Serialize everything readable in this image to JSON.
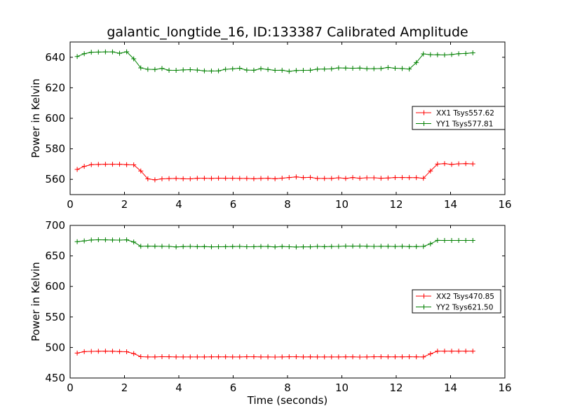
{
  "figure": {
    "title": "galantic_longtide_16, ID:133387 Calibrated Amplitude"
  },
  "colors": {
    "series_x": "#ff0000",
    "series_y": "#008000",
    "axes": "#000000",
    "background": "#ffffff"
  },
  "chart_data": [
    {
      "type": "line",
      "title": "galantic_longtide_16, ID:133387 Calibrated Amplitude",
      "xlabel": "",
      "ylabel": "Power in Kelvin",
      "xlim": [
        0,
        16
      ],
      "ylim": [
        550,
        650
      ],
      "xticks": [
        0,
        2,
        4,
        6,
        8,
        10,
        12,
        14,
        16
      ],
      "yticks": [
        560,
        580,
        600,
        620,
        640
      ],
      "xtick_labels": [
        "0",
        "2",
        "4",
        "6",
        "8",
        "10",
        "12",
        "14",
        "16"
      ],
      "ytick_labels": [
        "560",
        "580",
        "600",
        "620",
        "640"
      ],
      "grid": false,
      "legend_position": "right",
      "marker": "+",
      "x": [
        0.26,
        0.52,
        0.78,
        1.04,
        1.3,
        1.56,
        1.82,
        2.08,
        2.34,
        2.6,
        2.86,
        3.12,
        3.38,
        3.64,
        3.9,
        4.16,
        4.42,
        4.68,
        4.94,
        5.2,
        5.46,
        5.72,
        5.98,
        6.24,
        6.5,
        6.76,
        7.02,
        7.28,
        7.54,
        7.8,
        8.06,
        8.32,
        8.58,
        8.84,
        9.1,
        9.36,
        9.62,
        9.88,
        10.14,
        10.4,
        10.66,
        10.92,
        11.18,
        11.44,
        11.7,
        11.96,
        12.22,
        12.48,
        12.74,
        13.0,
        13.26,
        13.52,
        13.78,
        14.04,
        14.3,
        14.56,
        14.82
      ],
      "series": [
        {
          "name": "XX1 Tsys557.62",
          "values": [
            566.5,
            568.5,
            569.6,
            569.8,
            569.9,
            569.9,
            569.9,
            569.6,
            569.5,
            565.5,
            560.3,
            559.7,
            560.3,
            560.5,
            560.6,
            560.4,
            560.3,
            560.7,
            560.7,
            560.6,
            560.8,
            560.7,
            560.7,
            560.6,
            560.6,
            560.4,
            560.6,
            560.7,
            560.4,
            560.8,
            561.2,
            561.6,
            561.1,
            561.3,
            560.6,
            560.6,
            560.6,
            561.0,
            560.6,
            561.2,
            560.7,
            561.0,
            561.0,
            560.7,
            560.9,
            561.2,
            561.2,
            561.1,
            561.1,
            560.7,
            565.5,
            570.0,
            570.3,
            569.8,
            570.2,
            570.3,
            570.1
          ]
        },
        {
          "name": "YY1 Tsys577.81",
          "values": [
            640.5,
            642.3,
            643.3,
            643.4,
            643.5,
            643.5,
            642.6,
            643.6,
            639.0,
            633.0,
            632.1,
            632.0,
            632.7,
            631.5,
            631.4,
            631.7,
            631.9,
            631.6,
            631.1,
            631.0,
            631.1,
            632.1,
            632.4,
            632.8,
            631.6,
            631.5,
            632.5,
            632.0,
            631.4,
            631.5,
            630.8,
            631.3,
            631.4,
            631.5,
            632.2,
            632.3,
            632.4,
            633.0,
            632.9,
            632.8,
            632.9,
            632.5,
            632.5,
            632.6,
            633.3,
            632.8,
            632.6,
            632.3,
            636.5,
            642.2,
            641.7,
            641.6,
            641.5,
            641.8,
            642.3,
            642.5,
            642.9
          ]
        }
      ]
    },
    {
      "type": "line",
      "title": "",
      "xlabel": "Time (seconds)",
      "ylabel": "Power in Kelvin",
      "xlim": [
        0,
        16
      ],
      "ylim": [
        450,
        700
      ],
      "xticks": [
        0,
        2,
        4,
        6,
        8,
        10,
        12,
        14,
        16
      ],
      "yticks": [
        450,
        500,
        550,
        600,
        650,
        700
      ],
      "xtick_labels": [
        "0",
        "2",
        "4",
        "6",
        "8",
        "10",
        "12",
        "14",
        "16"
      ],
      "ytick_labels": [
        "450",
        "500",
        "550",
        "600",
        "650",
        "700"
      ],
      "grid": false,
      "legend_position": "right",
      "marker": "+",
      "x": [
        0.26,
        0.52,
        0.78,
        1.04,
        1.3,
        1.56,
        1.82,
        2.08,
        2.34,
        2.6,
        2.86,
        3.12,
        3.38,
        3.64,
        3.9,
        4.16,
        4.42,
        4.68,
        4.94,
        5.2,
        5.46,
        5.72,
        5.98,
        6.24,
        6.5,
        6.76,
        7.02,
        7.28,
        7.54,
        7.8,
        8.06,
        8.32,
        8.58,
        8.84,
        9.1,
        9.36,
        9.62,
        9.88,
        10.14,
        10.4,
        10.66,
        10.92,
        11.18,
        11.44,
        11.7,
        11.96,
        12.22,
        12.48,
        12.74,
        13.0,
        13.26,
        13.52,
        13.78,
        14.04,
        14.3,
        14.56,
        14.82
      ],
      "series": [
        {
          "name": "XX2 Tsys470.85",
          "values": [
            490.8,
            493.2,
            493.6,
            493.8,
            494.0,
            493.8,
            493.3,
            493.0,
            490.0,
            485.0,
            484.6,
            484.5,
            485.0,
            484.9,
            484.5,
            484.5,
            484.5,
            484.6,
            484.5,
            484.7,
            484.7,
            484.7,
            484.5,
            484.6,
            484.8,
            484.8,
            484.6,
            484.5,
            484.4,
            484.6,
            484.8,
            484.8,
            484.6,
            484.7,
            484.5,
            484.6,
            484.6,
            484.5,
            484.7,
            484.7,
            484.4,
            484.6,
            484.8,
            484.8,
            484.7,
            484.7,
            484.7,
            484.8,
            484.7,
            484.6,
            489.5,
            494.0,
            494.0,
            494.0,
            494.0,
            494.0,
            494.0
          ]
        },
        {
          "name": "YY2 Tsys621.50",
          "values": [
            673.4,
            674.6,
            676.1,
            676.5,
            676.3,
            676.1,
            675.9,
            676.3,
            672.8,
            665.8,
            666.0,
            665.9,
            665.8,
            665.6,
            664.8,
            665.3,
            665.6,
            665.2,
            665.3,
            664.9,
            665.0,
            665.2,
            665.3,
            665.6,
            665.0,
            665.1,
            665.5,
            665.4,
            664.7,
            665.4,
            665.0,
            664.6,
            664.9,
            664.9,
            665.6,
            665.2,
            665.5,
            665.6,
            666.2,
            666.0,
            666.1,
            665.9,
            665.6,
            665.8,
            665.8,
            665.5,
            665.8,
            665.3,
            665.3,
            665.6,
            669.8,
            675.5,
            675.4,
            675.4,
            675.4,
            675.4,
            675.4
          ]
        }
      ]
    }
  ]
}
